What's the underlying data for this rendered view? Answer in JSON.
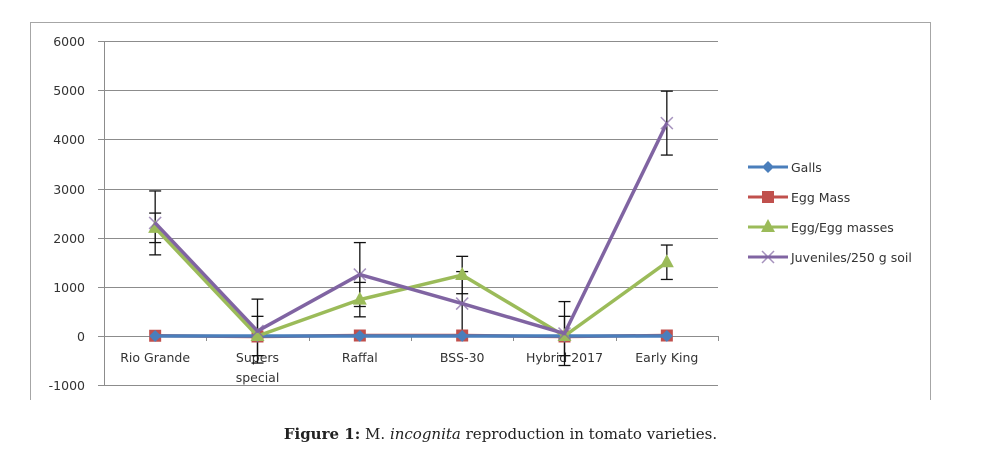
{
  "figure": {
    "caption_label": "Figure 1:",
    "caption_genus": "M.",
    "caption_species": "incognita",
    "caption_rest": "reproduction in tomato varieties."
  },
  "chart_data": {
    "type": "line",
    "title": "",
    "xlabel": "",
    "ylabel": "",
    "categories": [
      "Rio Grande",
      "Supers special",
      "Raffal",
      "BSS-30",
      "Hybrid 2017",
      "Early King"
    ],
    "category_lines": [
      [
        "Rio Grande"
      ],
      [
        "Supers",
        "special"
      ],
      [
        "Raffal"
      ],
      [
        "BSS-30"
      ],
      [
        "Hybrid 2017"
      ],
      [
        "Early King"
      ]
    ],
    "ylim": [
      -1000,
      6000
    ],
    "yticks": [
      -1000,
      0,
      1000,
      2000,
      3000,
      4000,
      5000,
      6000
    ],
    "grid": true,
    "legend_position": "right",
    "series": [
      {
        "name": "Galls",
        "color": "#4a7ebb",
        "marker": "diamond",
        "values": [
          0,
          0,
          0,
          0,
          0,
          0
        ],
        "errors": [
          0,
          0,
          0,
          0,
          0,
          0
        ]
      },
      {
        "name": "Egg Mass",
        "color": "#c0504d",
        "marker": "square",
        "values": [
          5,
          -10,
          10,
          10,
          -10,
          10
        ],
        "errors": [
          0,
          0,
          0,
          0,
          0,
          0
        ]
      },
      {
        "name": "Egg/Egg masses",
        "color": "#9bbb59",
        "marker": "triangle",
        "values": [
          2200,
          0,
          740,
          1240,
          0,
          1500
        ],
        "errors": [
          300,
          400,
          350,
          380,
          400,
          350
        ]
      },
      {
        "name": "Juveniles/250 g soil",
        "color": "#8064a2",
        "marker": "x",
        "values": [
          2300,
          100,
          1250,
          660,
          50,
          4330
        ],
        "errors": [
          650,
          650,
          650,
          650,
          650,
          650
        ]
      }
    ]
  }
}
